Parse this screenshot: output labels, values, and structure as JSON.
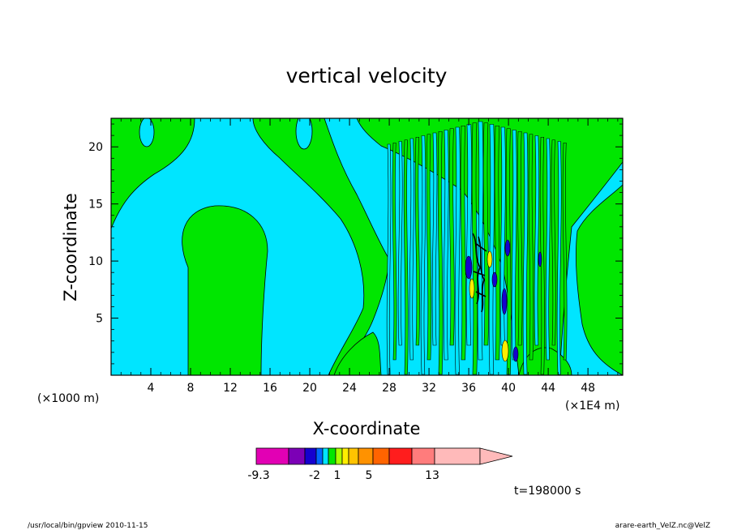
{
  "chart_data": {
    "type": "heatmap",
    "title": "vertical velocity",
    "xlabel": "X-coordinate",
    "ylabel": "Z-coordinate",
    "xlim": [
      0,
      51.5
    ],
    "ylim": [
      0,
      22.5
    ],
    "x_ticks": [
      4,
      8,
      12,
      16,
      20,
      24,
      28,
      32,
      36,
      40,
      44,
      48
    ],
    "x_tick_labels": [
      "4",
      "8",
      "12",
      "16",
      "20",
      "24",
      "28",
      "32",
      "36",
      "40",
      "44",
      "48"
    ],
    "y_ticks": [
      5,
      10,
      15,
      20
    ],
    "y_tick_labels": [
      "5",
      "10",
      "15",
      "20"
    ],
    "x_unit_left": "(×1000 m)",
    "x_unit_right": "(×1E4 m)",
    "time_label": "t=198000 s",
    "colorbar": {
      "colors": [
        "#e200b4",
        "#7c00b6",
        "#1500cf",
        "#0066ff",
        "#00e5ff",
        "#00e600",
        "#aaff00",
        "#ffee00",
        "#ffc300",
        "#ff9200",
        "#ff6400",
        "#ff1d1d",
        "#ff7c7c",
        "#ffbaba"
      ],
      "labels": [
        {
          "text": "-9.3",
          "value": -9.3
        },
        {
          "text": "-2",
          "value": -2
        },
        {
          "text": "1",
          "value": 1
        },
        {
          "text": "5",
          "value": 5
        },
        {
          "text": "13",
          "value": 13
        }
      ]
    },
    "palette": {
      "negative": "#00e5ff",
      "positive": "#00e600",
      "strong_positive": "#ffee00",
      "strong_negative": "#1500cf",
      "contour": "#000000"
    }
  },
  "footer": {
    "left": "/usr/local/bin/gpview   2010-11-15",
    "right": "arare-earth_VelZ.nc@VelZ"
  }
}
